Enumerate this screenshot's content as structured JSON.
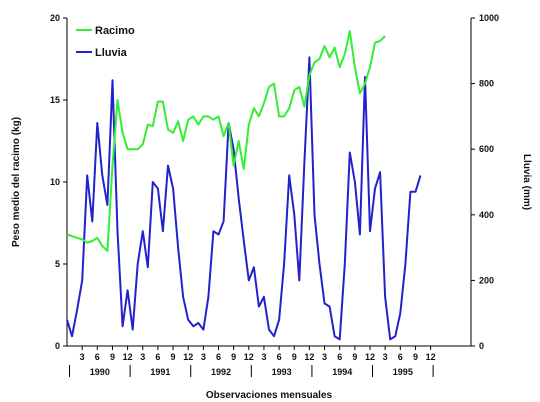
{
  "chart_data": {
    "type": "line",
    "xlabel": "Observaciones mensuales",
    "ylabel_left": "Peso medio del racimo (kg)",
    "ylabel_right": "Lluvia (mm)",
    "ylim_left": [
      0,
      20
    ],
    "ylim_right": [
      0,
      1000
    ],
    "yticks_left": [
      "0",
      "5",
      "10",
      "15",
      "20"
    ],
    "yticks_right": [
      "0",
      "200",
      "400",
      "600",
      "800",
      "1000"
    ],
    "xticks": [
      "3",
      "6",
      "9",
      "12",
      "3",
      "6",
      "9",
      "12",
      "3",
      "6",
      "9",
      "12",
      "3",
      "6",
      "9",
      "12",
      "3",
      "6",
      "9",
      "12",
      "3",
      "6",
      "9",
      "12"
    ],
    "years": [
      "1990",
      "1991",
      "1992",
      "1993",
      "1994",
      "1995"
    ],
    "legend_position": "top-left",
    "colors": {
      "racimo": "#33ee33",
      "lluvia": "#2222cc"
    },
    "series": [
      {
        "name": "Racimo",
        "axis": "left",
        "points": [
          [
            0,
            6.8
          ],
          [
            1,
            6.7
          ],
          [
            2,
            6.6
          ],
          [
            3,
            6.5
          ],
          [
            4,
            6.3
          ],
          [
            5,
            6.4
          ],
          [
            6,
            6.6
          ],
          [
            7,
            6.1
          ],
          [
            8,
            5.8
          ],
          [
            9,
            11.0
          ],
          [
            10,
            15.0
          ],
          [
            11,
            13.0
          ],
          [
            12,
            12.0
          ],
          [
            13,
            12.0
          ],
          [
            14,
            12.0
          ],
          [
            15,
            12.3
          ],
          [
            16,
            13.5
          ],
          [
            17,
            13.4
          ],
          [
            18,
            14.9
          ],
          [
            19,
            14.9
          ],
          [
            20,
            13.2
          ],
          [
            21,
            13.0
          ],
          [
            22,
            13.7
          ],
          [
            23,
            12.5
          ],
          [
            24,
            13.8
          ],
          [
            25,
            14.0
          ],
          [
            26,
            13.5
          ],
          [
            27,
            14.0
          ],
          [
            28,
            14.0
          ],
          [
            29,
            13.8
          ],
          [
            30,
            14.0
          ],
          [
            31,
            12.8
          ],
          [
            32,
            13.6
          ],
          [
            33,
            11.0
          ],
          [
            34,
            12.5
          ],
          [
            35,
            10.8
          ],
          [
            36,
            13.5
          ],
          [
            37,
            14.5
          ],
          [
            38,
            14.0
          ],
          [
            39,
            14.8
          ],
          [
            40,
            15.8
          ],
          [
            41,
            16.0
          ],
          [
            42,
            14.0
          ],
          [
            43,
            14.0
          ],
          [
            44,
            14.5
          ],
          [
            45,
            15.6
          ],
          [
            46,
            15.8
          ],
          [
            47,
            14.6
          ],
          [
            48,
            16.5
          ],
          [
            49,
            17.3
          ],
          [
            50,
            17.5
          ],
          [
            51,
            18.3
          ],
          [
            52,
            17.6
          ],
          [
            53,
            18.2
          ],
          [
            54,
            17.0
          ],
          [
            55,
            17.8
          ],
          [
            56,
            19.2
          ],
          [
            57,
            17.0
          ],
          [
            58,
            15.4
          ],
          [
            59,
            16.0
          ],
          [
            60,
            17.0
          ],
          [
            61,
            18.5
          ],
          [
            62,
            18.6
          ],
          [
            63,
            18.9
          ]
        ]
      },
      {
        "name": "Lluvia",
        "axis": "right",
        "points": [
          [
            0,
            80
          ],
          [
            1,
            30
          ],
          [
            2,
            110
          ],
          [
            3,
            200
          ],
          [
            4,
            520
          ],
          [
            5,
            380
          ],
          [
            6,
            680
          ],
          [
            7,
            520
          ],
          [
            8,
            430
          ],
          [
            9,
            810
          ],
          [
            10,
            350
          ],
          [
            11,
            60
          ],
          [
            12,
            170
          ],
          [
            13,
            50
          ],
          [
            14,
            250
          ],
          [
            15,
            350
          ],
          [
            16,
            240
          ],
          [
            17,
            500
          ],
          [
            18,
            480
          ],
          [
            19,
            350
          ],
          [
            20,
            550
          ],
          [
            21,
            480
          ],
          [
            22,
            300
          ],
          [
            23,
            150
          ],
          [
            24,
            80
          ],
          [
            25,
            60
          ],
          [
            26,
            70
          ],
          [
            27,
            50
          ],
          [
            28,
            150
          ],
          [
            29,
            350
          ],
          [
            30,
            340
          ],
          [
            31,
            380
          ],
          [
            32,
            680
          ],
          [
            33,
            600
          ],
          [
            34,
            450
          ],
          [
            35,
            320
          ],
          [
            36,
            200
          ],
          [
            37,
            240
          ],
          [
            38,
            120
          ],
          [
            39,
            150
          ],
          [
            40,
            50
          ],
          [
            41,
            30
          ],
          [
            42,
            80
          ],
          [
            43,
            250
          ],
          [
            44,
            520
          ],
          [
            45,
            400
          ],
          [
            46,
            200
          ],
          [
            47,
            560
          ],
          [
            48,
            880
          ],
          [
            49,
            400
          ],
          [
            50,
            250
          ],
          [
            51,
            130
          ],
          [
            52,
            120
          ],
          [
            53,
            30
          ],
          [
            54,
            20
          ],
          [
            55,
            250
          ],
          [
            56,
            590
          ],
          [
            57,
            500
          ],
          [
            58,
            340
          ],
          [
            59,
            820
          ],
          [
            60,
            350
          ],
          [
            61,
            480
          ],
          [
            62,
            530
          ],
          [
            63,
            150
          ],
          [
            64,
            20
          ],
          [
            65,
            30
          ],
          [
            66,
            100
          ],
          [
            67,
            250
          ],
          [
            68,
            470
          ],
          [
            69,
            470
          ],
          [
            70,
            520
          ]
        ]
      }
    ]
  }
}
